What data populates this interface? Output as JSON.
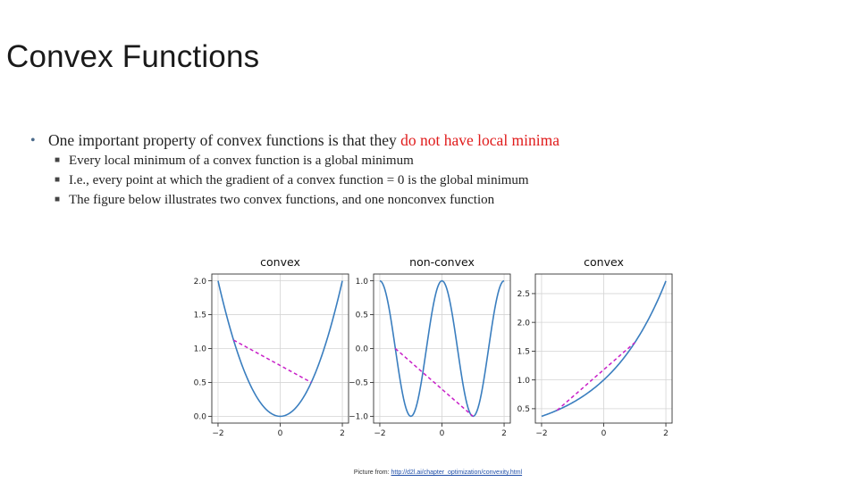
{
  "slide": {
    "title": "Convex Functions",
    "bullet_main_prefix": "One important property of convex functions is that they ",
    "bullet_main_highlight": "do not have local minima",
    "sub_bullets": [
      "Every local minimum of a convex function is a global minimum",
      "I.e., every point at which the gradient of a convex function = 0 is the global minimum",
      "The figure below illustrates two convex functions, and one nonconvex function"
    ],
    "footer_prefix": "Picture from: ",
    "footer_link": "http://d2l.ai/chapter_optimization/convexity.html"
  },
  "colors": {
    "curve": "#3a7ebf",
    "chord": "#c81fc8",
    "highlight": "#e01b1b"
  },
  "chart_data": [
    {
      "type": "line",
      "title": "convex",
      "function": "x^2 / 2",
      "x": [
        -2,
        -1.75,
        -1.5,
        -1.25,
        -1,
        -0.75,
        -0.5,
        -0.25,
        0,
        0.25,
        0.5,
        0.75,
        1,
        1.25,
        1.5,
        1.75,
        2
      ],
      "y": [
        2,
        1.531,
        1.125,
        0.781,
        0.5,
        0.281,
        0.125,
        0.031,
        0,
        0.031,
        0.125,
        0.281,
        0.5,
        0.781,
        1.125,
        1.531,
        2
      ],
      "chord": {
        "x": [
          -1.5,
          1
        ],
        "y": [
          1.125,
          0.5
        ]
      },
      "xlim": [
        -2.2,
        2.2
      ],
      "ylim": [
        -0.1,
        2.1
      ],
      "xticks": [
        -2,
        0,
        2
      ],
      "xtick_labels": [
        "−2",
        "0",
        "2"
      ],
      "yticks": [
        0,
        0.5,
        1,
        1.5,
        2
      ],
      "ytick_labels": [
        "0.0",
        "0.5",
        "1.0",
        "1.5",
        "2.0"
      ],
      "grid": true
    },
    {
      "type": "line",
      "title": "non-convex",
      "function": "cos(pi x)",
      "x": [
        -2,
        -1.75,
        -1.5,
        -1.25,
        -1,
        -0.75,
        -0.5,
        -0.25,
        0,
        0.25,
        0.5,
        0.75,
        1,
        1.25,
        1.5,
        1.75,
        2
      ],
      "y": [
        1,
        0.707,
        0,
        -0.707,
        -1,
        -0.707,
        0,
        0.707,
        1,
        0.707,
        0,
        -0.707,
        -1,
        -0.707,
        0,
        0.707,
        1
      ],
      "chord": {
        "x": [
          -1.5,
          1
        ],
        "y": [
          0,
          -1
        ]
      },
      "xlim": [
        -2.2,
        2.2
      ],
      "ylim": [
        -1.1,
        1.1
      ],
      "xticks": [
        -2,
        0,
        2
      ],
      "xtick_labels": [
        "−2",
        "0",
        "2"
      ],
      "yticks": [
        -1,
        -0.5,
        0,
        0.5,
        1
      ],
      "ytick_labels": [
        "−1.0",
        "−0.5",
        "0.0",
        "0.5",
        "1.0"
      ],
      "grid": true
    },
    {
      "type": "line",
      "title": "convex",
      "function": "exp(0.5 x)",
      "x": [
        -2,
        -1.75,
        -1.5,
        -1.25,
        -1,
        -0.75,
        -0.5,
        -0.25,
        0,
        0.25,
        0.5,
        0.75,
        1,
        1.25,
        1.5,
        1.75,
        2
      ],
      "y": [
        0.368,
        0.417,
        0.472,
        0.535,
        0.607,
        0.687,
        0.779,
        0.882,
        1,
        1.133,
        1.284,
        1.455,
        1.649,
        1.868,
        2.117,
        2.398,
        2.718
      ],
      "chord": {
        "x": [
          -1.5,
          1
        ],
        "y": [
          0.472,
          1.649
        ]
      },
      "xlim": [
        -2.2,
        2.2
      ],
      "ylim": [
        0.25,
        2.84
      ],
      "xticks": [
        -2,
        0,
        2
      ],
      "xtick_labels": [
        "−2",
        "0",
        "2"
      ],
      "yticks": [
        0.5,
        1,
        1.5,
        2,
        2.5
      ],
      "ytick_labels": [
        "0.5",
        "1.0",
        "1.5",
        "2.0",
        "2.5"
      ],
      "grid": true
    }
  ]
}
